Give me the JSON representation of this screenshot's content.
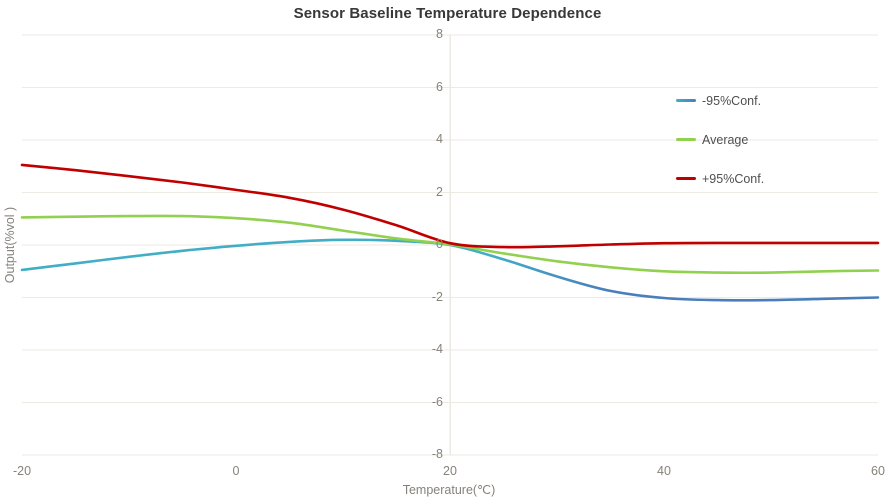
{
  "chart_data": {
    "type": "line",
    "title": "Sensor Baseline Temperature Dependence",
    "xlabel": "Temperature(℃)",
    "ylabel": "Output(%vol )",
    "xlim": [
      -20,
      60
    ],
    "ylim": [
      -8,
      8
    ],
    "xticks": [
      -20,
      0,
      20,
      40,
      60
    ],
    "yticks": [
      8,
      6,
      4,
      2,
      0,
      -2,
      -4,
      -6,
      -8
    ],
    "grid": "horizontal gridlines on, vertical axis line drawn at x=20",
    "axis_cross_x": 20,
    "legend_position": "upper right, vertical stack",
    "x": [
      -20,
      -15,
      -10,
      -5,
      0,
      5,
      10,
      15,
      20,
      25,
      30,
      35,
      40,
      45,
      50,
      55,
      60
    ],
    "series": [
      {
        "name": "-95%Conf.",
        "color_start": "#41AEC6",
        "color_end": "#4A7EBB",
        "values": [
          -0.95,
          -0.7,
          -0.45,
          -0.22,
          -0.03,
          0.12,
          0.2,
          0.16,
          0.0,
          -0.55,
          -1.2,
          -1.75,
          -2.02,
          -2.1,
          -2.1,
          -2.05,
          -2.0
        ]
      },
      {
        "name": "Average",
        "color": "#92D050",
        "values": [
          1.05,
          1.08,
          1.1,
          1.1,
          1.02,
          0.85,
          0.55,
          0.25,
          0.02,
          -0.32,
          -0.62,
          -0.85,
          -1.0,
          -1.05,
          -1.05,
          -1.0,
          -0.97
        ]
      },
      {
        "name": "+95%Conf.",
        "color": "#C00000",
        "values": [
          3.05,
          2.85,
          2.62,
          2.38,
          2.1,
          1.8,
          1.35,
          0.75,
          0.07,
          -0.08,
          -0.05,
          0.02,
          0.07,
          0.08,
          0.08,
          0.08,
          0.08
        ]
      }
    ]
  },
  "colors": {
    "background": "#FFFFFF",
    "gridline": "#ECEAE2",
    "axis_line": "#ECEAE2",
    "title_text": "#383838",
    "tick_text": "#86827B",
    "legend_text": "#4F4F4F"
  }
}
